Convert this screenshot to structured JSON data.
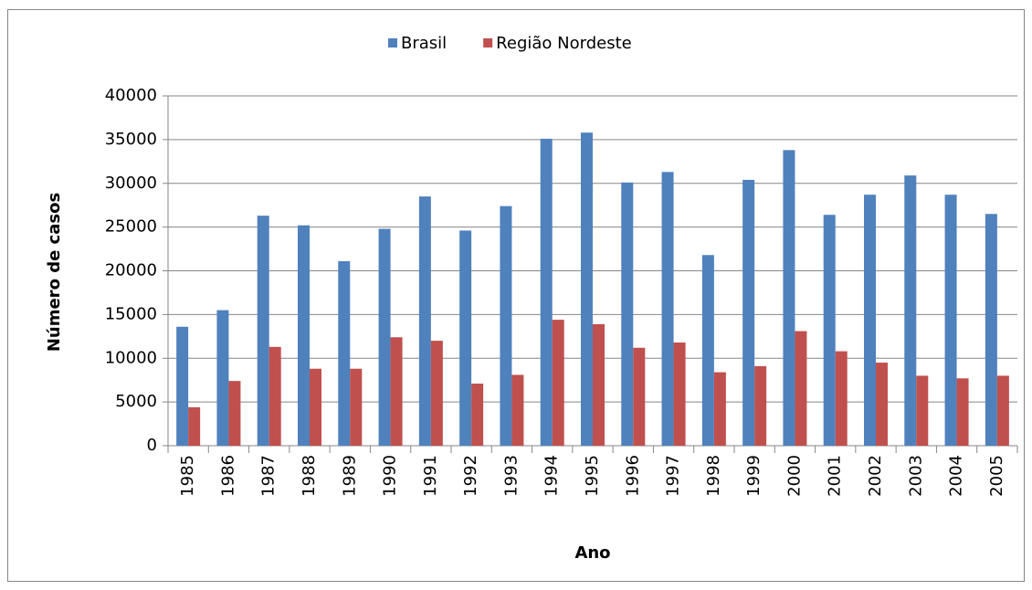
{
  "chart_data": {
    "type": "bar",
    "x_label": "Ano",
    "y_label": "Número de casos",
    "categories": [
      "1985",
      "1986",
      "1987",
      "1988",
      "1989",
      "1990",
      "1991",
      "1992",
      "1993",
      "1994",
      "1995",
      "1996",
      "1997",
      "1998",
      "1999",
      "2000",
      "2001",
      "2002",
      "2003",
      "2004",
      "2005"
    ],
    "series": [
      {
        "name": "Brasil",
        "color": "#4f81bd",
        "values": [
          13600,
          15500,
          26300,
          25200,
          21100,
          24800,
          28500,
          24600,
          27400,
          35100,
          35800,
          30100,
          31300,
          21800,
          30400,
          33800,
          26400,
          28700,
          30900,
          28700,
          26500
        ]
      },
      {
        "name": "Região Nordeste",
        "color": "#c0504d",
        "values": [
          4400,
          7400,
          11300,
          8800,
          8800,
          12400,
          12000,
          7100,
          8100,
          14400,
          13900,
          11200,
          11800,
          8400,
          9100,
          13100,
          10800,
          9500,
          8000,
          7700,
          8000
        ]
      }
    ],
    "ylim": [
      0,
      40000
    ],
    "yticks": [
      0,
      5000,
      10000,
      15000,
      20000,
      25000,
      30000,
      35000,
      40000
    ],
    "grid": true,
    "legend": "top"
  }
}
